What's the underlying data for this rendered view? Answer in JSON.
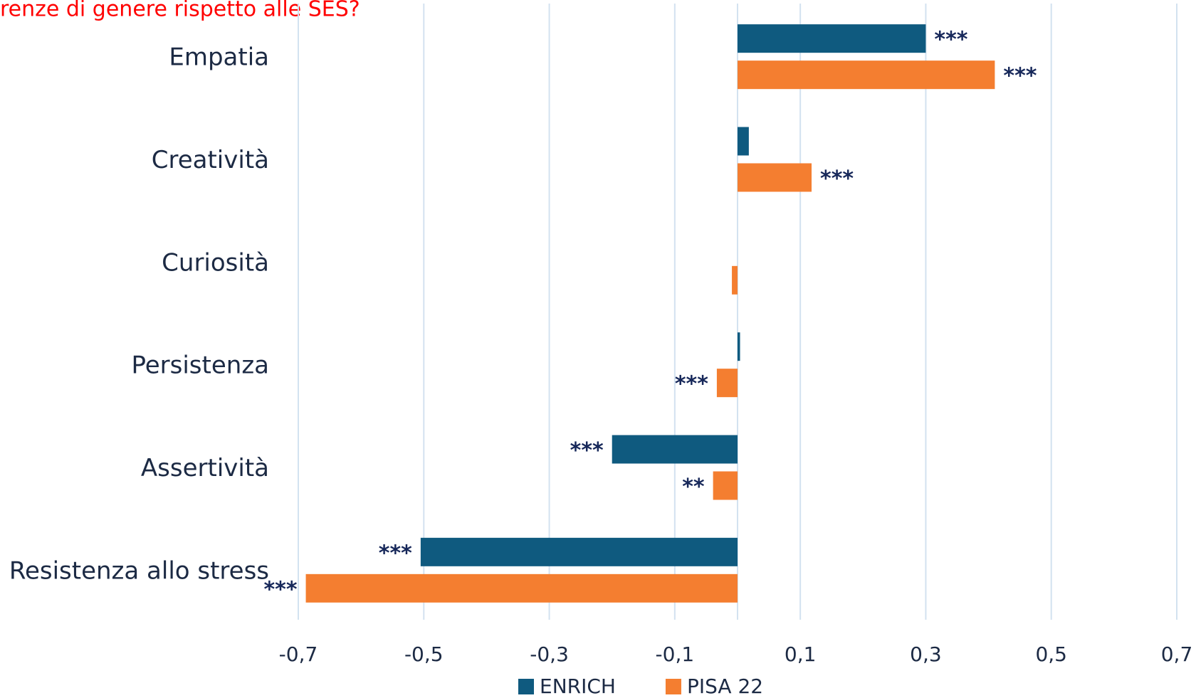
{
  "chart_data": {
    "type": "hbar",
    "title": "renze di genere rispetto alle SES?",
    "categories": [
      "Empatia",
      "Creatività",
      "Curiosità",
      "Persistenza",
      "Assertività",
      "Resistenza allo stress"
    ],
    "series": [
      {
        "name": "ENRICH",
        "color": "#0f5a7f",
        "values": [
          0.3,
          0.018,
          0,
          0.004,
          -0.2,
          -0.505
        ],
        "labels": [
          "***",
          null,
          null,
          null,
          "***",
          "***"
        ]
      },
      {
        "name": "PISA 22",
        "color": "#f47e30",
        "values": [
          0.41,
          0.118,
          -0.009,
          -0.033,
          -0.039,
          -0.688
        ],
        "labels": [
          "***",
          "***",
          null,
          "***",
          "**",
          "***"
        ]
      }
    ],
    "xlim": [
      -0.7,
      0.7
    ],
    "xticks": [
      {
        "value": -0.7,
        "label": "-0,7"
      },
      {
        "value": -0.5,
        "label": "-0,5"
      },
      {
        "value": -0.3,
        "label": "-0,3"
      },
      {
        "value": -0.1,
        "label": "-0,1"
      },
      {
        "value": 0.1,
        "label": "0,1"
      },
      {
        "value": 0.3,
        "label": "0,3"
      },
      {
        "value": 0.5,
        "label": "0,5"
      },
      {
        "value": 0.7,
        "label": "0,7"
      }
    ],
    "grid": true,
    "legend": "bottom"
  }
}
